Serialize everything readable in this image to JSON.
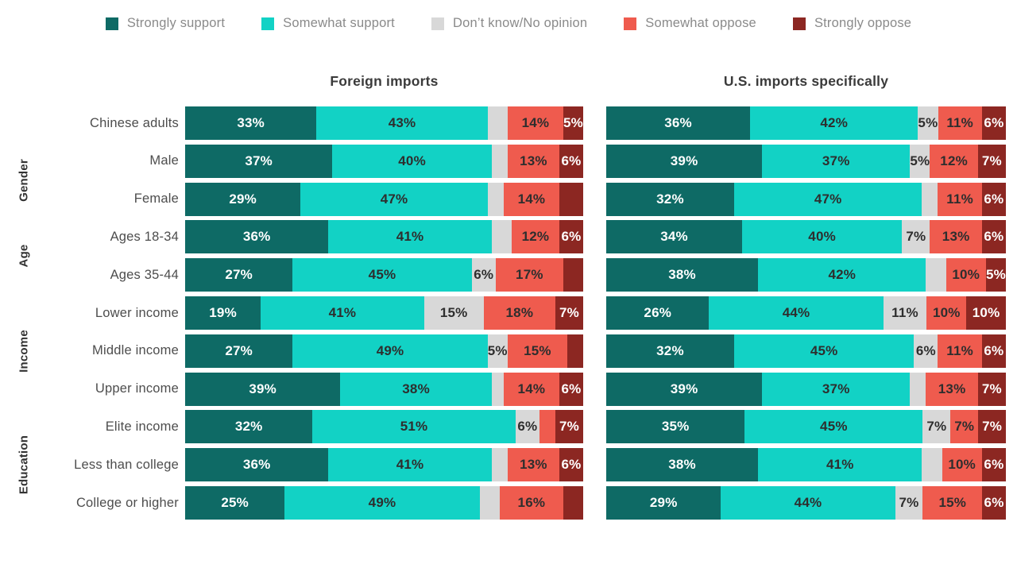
{
  "legend": {
    "items": [
      {
        "label": "Strongly support",
        "color": "#0e6a65"
      },
      {
        "label": "Somewhat support",
        "color": "#12d2c5"
      },
      {
        "label": "Don’t know/No opinion",
        "color": "#d8d8d8"
      },
      {
        "label": "Somewhat oppose",
        "color": "#ef5b4e"
      },
      {
        "label": "Strongly oppose",
        "color": "#8c2722"
      }
    ]
  },
  "chart_data": {
    "type": "bar",
    "variant": "stacked-horizontal",
    "unit": "%",
    "xlim": [
      0,
      100
    ],
    "grid": false,
    "legend_position": "top",
    "series": [
      "Strongly support",
      "Somewhat support",
      "Don’t know/No opinion",
      "Somewhat oppose",
      "Strongly oppose"
    ],
    "series_colors": [
      "#0e6a65",
      "#12d2c5",
      "#d8d8d8",
      "#ef5b4e",
      "#8c2722"
    ],
    "categories": [
      "Chinese adults",
      "Male",
      "Female",
      "Ages 18-34",
      "Ages 35-44",
      "Lower income",
      "Middle income",
      "Upper income",
      "Elite income",
      "Less than college",
      "College or higher"
    ],
    "groups": [
      {
        "label": "Gender",
        "categories": [
          "Male",
          "Female"
        ]
      },
      {
        "label": "Age",
        "categories": [
          "Ages 18-34",
          "Ages 35-44"
        ]
      },
      {
        "label": "Income",
        "categories": [
          "Lower income",
          "Middle income",
          "Upper income",
          "Elite income"
        ]
      },
      {
        "label": "Education",
        "categories": [
          "Less than college",
          "College or higher"
        ]
      }
    ],
    "panels": [
      {
        "title": "Foreign imports",
        "rows": [
          {
            "category": "Chinese adults",
            "values": [
              33,
              43,
              5,
              14,
              5
            ],
            "labeled": [
              1,
              1,
              0,
              1,
              1
            ]
          },
          {
            "category": "Male",
            "values": [
              37,
              40,
              4,
              13,
              6
            ],
            "labeled": [
              1,
              1,
              0,
              1,
              1
            ]
          },
          {
            "category": "Female",
            "values": [
              29,
              47,
              4,
              14,
              6
            ],
            "labeled": [
              1,
              1,
              0,
              1,
              0
            ]
          },
          {
            "category": "Ages 18-34",
            "values": [
              36,
              41,
              5,
              12,
              6
            ],
            "labeled": [
              1,
              1,
              0,
              1,
              1
            ]
          },
          {
            "category": "Ages 35-44",
            "values": [
              27,
              45,
              6,
              17,
              5
            ],
            "labeled": [
              1,
              1,
              1,
              1,
              0
            ]
          },
          {
            "category": "Lower income",
            "values": [
              19,
              41,
              15,
              18,
              7
            ],
            "labeled": [
              1,
              1,
              1,
              1,
              1
            ]
          },
          {
            "category": "Middle income",
            "values": [
              27,
              49,
              5,
              15,
              4
            ],
            "labeled": [
              1,
              1,
              1,
              1,
              0
            ]
          },
          {
            "category": "Upper income",
            "values": [
              39,
              38,
              3,
              14,
              6
            ],
            "labeled": [
              1,
              1,
              0,
              1,
              1
            ]
          },
          {
            "category": "Elite income",
            "values": [
              32,
              51,
              6,
              4,
              7
            ],
            "labeled": [
              1,
              1,
              1,
              0,
              1
            ]
          },
          {
            "category": "Less than college",
            "values": [
              36,
              41,
              4,
              13,
              6
            ],
            "labeled": [
              1,
              1,
              0,
              1,
              1
            ]
          },
          {
            "category": "College or higher",
            "values": [
              25,
              49,
              5,
              16,
              5
            ],
            "labeled": [
              1,
              1,
              0,
              1,
              0
            ]
          }
        ]
      },
      {
        "title": "U.S. imports specifically",
        "rows": [
          {
            "category": "Chinese adults",
            "values": [
              36,
              42,
              5,
              11,
              6
            ],
            "labeled": [
              1,
              1,
              1,
              1,
              1
            ]
          },
          {
            "category": "Male",
            "values": [
              39,
              37,
              5,
              12,
              7
            ],
            "labeled": [
              1,
              1,
              1,
              1,
              1
            ]
          },
          {
            "category": "Female",
            "values": [
              32,
              47,
              4,
              11,
              6
            ],
            "labeled": [
              1,
              1,
              0,
              1,
              1
            ]
          },
          {
            "category": "Ages 18-34",
            "values": [
              34,
              40,
              7,
              13,
              6
            ],
            "labeled": [
              1,
              1,
              1,
              1,
              1
            ]
          },
          {
            "category": "Ages 35-44",
            "values": [
              38,
              42,
              5,
              10,
              5
            ],
            "labeled": [
              1,
              1,
              0,
              1,
              1
            ]
          },
          {
            "category": "Lower income",
            "values": [
              26,
              44,
              11,
              10,
              10
            ],
            "labeled": [
              1,
              1,
              1,
              1,
              1
            ]
          },
          {
            "category": "Middle income",
            "values": [
              32,
              45,
              6,
              11,
              6
            ],
            "labeled": [
              1,
              1,
              1,
              1,
              1
            ]
          },
          {
            "category": "Upper income",
            "values": [
              39,
              37,
              4,
              13,
              7
            ],
            "labeled": [
              1,
              1,
              0,
              1,
              1
            ]
          },
          {
            "category": "Elite income",
            "values": [
              35,
              45,
              7,
              7,
              7
            ],
            "labeled": [
              1,
              1,
              1,
              1,
              1
            ]
          },
          {
            "category": "Less than college",
            "values": [
              38,
              41,
              5,
              10,
              6
            ],
            "labeled": [
              1,
              1,
              0,
              1,
              1
            ]
          },
          {
            "category": "College or higher",
            "values": [
              29,
              44,
              7,
              15,
              6
            ],
            "labeled": [
              1,
              1,
              1,
              1,
              1
            ]
          }
        ]
      }
    ]
  }
}
